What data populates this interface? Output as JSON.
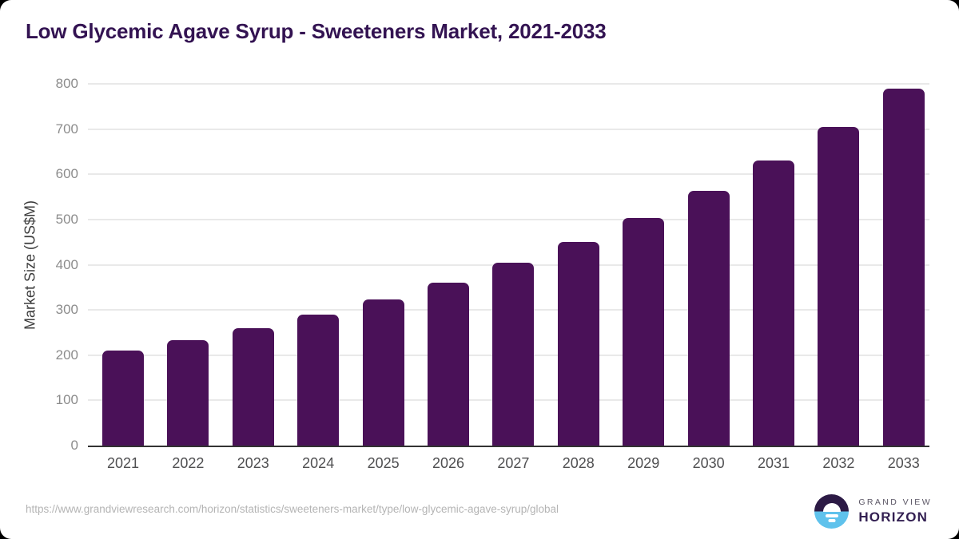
{
  "page": {
    "background_color": "#000000",
    "card_color": "#ffffff"
  },
  "header": {
    "title": "Low Glycemic Agave Syrup - Sweeteners Market, 2021-2033",
    "title_color": "#331352"
  },
  "chart_data": {
    "type": "bar",
    "title": "Low Glycemic Agave Syrup - Sweeteners Market, 2021-2033",
    "categories": [
      "2021",
      "2022",
      "2023",
      "2024",
      "2025",
      "2026",
      "2027",
      "2028",
      "2029",
      "2030",
      "2031",
      "2032",
      "2033"
    ],
    "values": [
      210,
      233,
      259,
      290,
      323,
      360,
      404,
      451,
      503,
      564,
      630,
      705,
      790
    ],
    "xlabel": "",
    "ylabel": "Market Size (US$M)",
    "ylim": [
      0,
      800
    ],
    "ytick_step": 100,
    "grid": true,
    "legend_position": "none",
    "bar_color": "#4a1158",
    "gridline_color": "#e9e9e9",
    "axis_line_color": "#333333",
    "ytick_color": "#8c8c8c",
    "xtick_color": "#4f4f51"
  },
  "footer": {
    "source_url": "https://www.grandviewresearch.com/horizon/statistics/sweeteners-market/type/low-glycemic-agave-syrup/global",
    "logo": {
      "line1": "GRAND VIEW",
      "line2": "HORIZON",
      "icon_top_color": "#2c1a45",
      "icon_bottom_color": "#5fc2ec"
    }
  }
}
